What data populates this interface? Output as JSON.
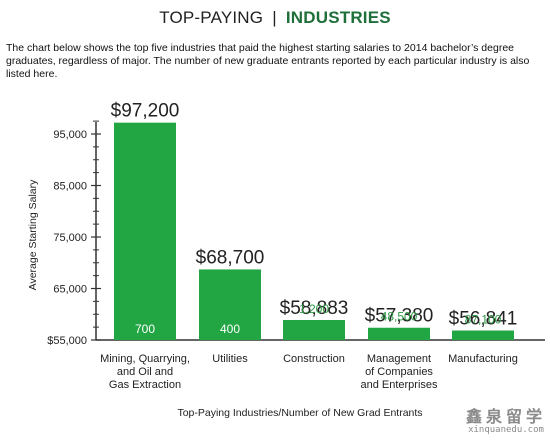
{
  "header": {
    "title_prefix": "TOP-PAYING",
    "separator": "|",
    "title_main": "INDUSTRIES",
    "intro": "The chart below shows the top five industries that paid the highest starting salaries to 2014 bachelor’s degree graduates, regardless of major. The number of new graduate entrants reported by each particular industry is also listed here."
  },
  "colors": {
    "title_accent": "#1f6f3a",
    "bar": "#22a543",
    "entrants_text_light": "#ffffff",
    "entrants_text_green": "#2e9a45",
    "axis": "#333333"
  },
  "chart_data": {
    "type": "bar",
    "title": "",
    "xlabel": "Top-Paying Industries/Number of New Grad Entrants",
    "ylabel": "Average Starting Salary",
    "ylim": [
      55000,
      99000
    ],
    "y_ticks": [
      {
        "value": 55000,
        "label": "$55,000"
      },
      {
        "value": 65000,
        "label": "65,000"
      },
      {
        "value": 75000,
        "label": "75,000"
      },
      {
        "value": 85000,
        "label": "85,000"
      },
      {
        "value": 95000,
        "label": "95,000"
      }
    ],
    "grid": false,
    "categories": [
      [
        "Mining, Quarrying,",
        "and Oil and",
        "Gas Extraction"
      ],
      [
        "Utilities"
      ],
      [
        "Construction"
      ],
      [
        "Management",
        "of Companies",
        "and Enterprises"
      ],
      [
        "Manufacturing"
      ]
    ],
    "values": [
      97200,
      68700,
      58883,
      57380,
      56841
    ],
    "value_labels": [
      "$97,200",
      "$68,700",
      "$58,883",
      "$57,380",
      "$56,841"
    ],
    "entrants": [
      700,
      400,
      1200,
      48500,
      87100
    ],
    "entrants_labels": [
      "700",
      "400",
      "1,200",
      "48,500",
      "87,100"
    ],
    "entrants_label_inside": [
      true,
      true,
      false,
      false,
      false
    ]
  },
  "watermark": {
    "chinese": "鑫泉留学",
    "url": "xinquanedu.com"
  }
}
